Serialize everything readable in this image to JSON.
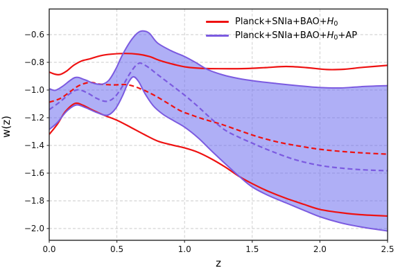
{
  "chart_data": {
    "type": "line",
    "title": "",
    "xlabel": "z",
    "ylabel": "w(z)",
    "xlim": [
      0,
      2.5
    ],
    "ylim": [
      -2.085,
      -0.415
    ],
    "grid": true,
    "grid_style": "dashed-light-gray",
    "legend_position": "upper-right",
    "xticks": {
      "values": [
        0.0,
        0.5,
        1.0,
        1.5,
        2.0,
        2.5
      ],
      "labels": [
        "0.0",
        "0.5",
        "1.0",
        "1.5",
        "2.0",
        "2.5"
      ]
    },
    "yticks": {
      "values": [
        -0.6,
        -0.8,
        -1.0,
        -1.2,
        -1.4,
        -1.6,
        -1.8,
        -2.0
      ],
      "labels": [
        "−0.6",
        "−0.8",
        "−1.0",
        "−1.2",
        "−1.4",
        "−1.6",
        "−1.8",
        "−2.0"
      ]
    },
    "series": [
      {
        "id": "h0-upper",
        "group": "Planck+SNIa+BAO+H0",
        "role": "upper 68% bound",
        "color": "#ee1111",
        "style": "solid",
        "width": 2.2,
        "points": [
          [
            0,
            -0.87
          ],
          [
            0.04,
            -0.885
          ],
          [
            0.08,
            -0.888
          ],
          [
            0.13,
            -0.862
          ],
          [
            0.18,
            -0.822
          ],
          [
            0.24,
            -0.79
          ],
          [
            0.3,
            -0.775
          ],
          [
            0.38,
            -0.752
          ],
          [
            0.46,
            -0.741
          ],
          [
            0.56,
            -0.736
          ],
          [
            0.66,
            -0.742
          ],
          [
            0.74,
            -0.758
          ],
          [
            0.82,
            -0.788
          ],
          [
            0.92,
            -0.815
          ],
          [
            1.02,
            -0.835
          ],
          [
            1.12,
            -0.843
          ],
          [
            1.25,
            -0.846
          ],
          [
            1.45,
            -0.845
          ],
          [
            1.6,
            -0.838
          ],
          [
            1.75,
            -0.83
          ],
          [
            1.9,
            -0.838
          ],
          [
            2.05,
            -0.852
          ],
          [
            2.18,
            -0.85
          ],
          [
            2.32,
            -0.836
          ],
          [
            2.5,
            -0.822
          ]
        ]
      },
      {
        "id": "h0-mean",
        "group": "Planck+SNIa+BAO+H0",
        "role": "mean",
        "color": "#ee1111",
        "style": "dashed",
        "width": 2.2,
        "points": [
          [
            0,
            -1.088
          ],
          [
            0.08,
            -1.062
          ],
          [
            0.15,
            -1.015
          ],
          [
            0.22,
            -0.968
          ],
          [
            0.3,
            -0.945
          ],
          [
            0.38,
            -0.958
          ],
          [
            0.48,
            -0.963
          ],
          [
            0.58,
            -0.962
          ],
          [
            0.68,
            -0.993
          ],
          [
            0.78,
            -1.04
          ],
          [
            0.88,
            -1.098
          ],
          [
            0.97,
            -1.15
          ],
          [
            1.05,
            -1.18
          ],
          [
            1.15,
            -1.213
          ],
          [
            1.28,
            -1.25
          ],
          [
            1.42,
            -1.298
          ],
          [
            1.55,
            -1.34
          ],
          [
            1.7,
            -1.378
          ],
          [
            1.85,
            -1.405
          ],
          [
            2.0,
            -1.428
          ],
          [
            2.18,
            -1.445
          ],
          [
            2.35,
            -1.456
          ],
          [
            2.5,
            -1.463
          ]
        ]
      },
      {
        "id": "h0-lower",
        "group": "Planck+SNIa+BAO+H0",
        "role": "lower 68% bound",
        "color": "#ee1111",
        "style": "solid",
        "width": 2.2,
        "points": [
          [
            0,
            -1.32
          ],
          [
            0.06,
            -1.247
          ],
          [
            0.12,
            -1.155
          ],
          [
            0.19,
            -1.097
          ],
          [
            0.25,
            -1.11
          ],
          [
            0.31,
            -1.14
          ],
          [
            0.4,
            -1.18
          ],
          [
            0.5,
            -1.218
          ],
          [
            0.6,
            -1.268
          ],
          [
            0.7,
            -1.32
          ],
          [
            0.8,
            -1.368
          ],
          [
            0.9,
            -1.395
          ],
          [
            1.0,
            -1.418
          ],
          [
            1.1,
            -1.45
          ],
          [
            1.2,
            -1.498
          ],
          [
            1.3,
            -1.556
          ],
          [
            1.4,
            -1.622
          ],
          [
            1.5,
            -1.676
          ],
          [
            1.62,
            -1.732
          ],
          [
            1.75,
            -1.782
          ],
          [
            1.88,
            -1.825
          ],
          [
            2.0,
            -1.862
          ],
          [
            2.15,
            -1.885
          ],
          [
            2.3,
            -1.9
          ],
          [
            2.5,
            -1.91
          ]
        ]
      },
      {
        "id": "ap-upper",
        "group": "Planck+SNIa+BAO+H0+AP",
        "role": "upper 68% bound",
        "color": "#7b5ae0",
        "style": "solid",
        "width": 2.0,
        "points": [
          [
            0,
            -0.99
          ],
          [
            0.045,
            -1.002
          ],
          [
            0.1,
            -0.972
          ],
          [
            0.19,
            -0.91
          ],
          [
            0.26,
            -0.925
          ],
          [
            0.33,
            -0.952
          ],
          [
            0.39,
            -0.958
          ],
          [
            0.44,
            -0.93
          ],
          [
            0.49,
            -0.852
          ],
          [
            0.54,
            -0.748
          ],
          [
            0.6,
            -0.648
          ],
          [
            0.65,
            -0.59
          ],
          [
            0.69,
            -0.573
          ],
          [
            0.74,
            -0.59
          ],
          [
            0.8,
            -0.66
          ],
          [
            0.9,
            -0.716
          ],
          [
            1.0,
            -0.758
          ],
          [
            1.08,
            -0.8
          ],
          [
            1.17,
            -0.852
          ],
          [
            1.28,
            -0.89
          ],
          [
            1.4,
            -0.917
          ],
          [
            1.52,
            -0.935
          ],
          [
            1.68,
            -0.953
          ],
          [
            1.85,
            -0.97
          ],
          [
            2.0,
            -0.982
          ],
          [
            2.15,
            -0.985
          ],
          [
            2.3,
            -0.976
          ],
          [
            2.5,
            -0.968
          ]
        ]
      },
      {
        "id": "ap-mean",
        "group": "Planck+SNIa+BAO+H0+AP",
        "role": "mean",
        "color": "#7b5ae0",
        "style": "dashed",
        "width": 2.2,
        "points": [
          [
            0,
            -1.142
          ],
          [
            0.08,
            -1.085
          ],
          [
            0.15,
            -1.028
          ],
          [
            0.21,
            -0.998
          ],
          [
            0.28,
            -1.02
          ],
          [
            0.35,
            -1.06
          ],
          [
            0.42,
            -1.082
          ],
          [
            0.48,
            -1.055
          ],
          [
            0.54,
            -0.975
          ],
          [
            0.6,
            -0.875
          ],
          [
            0.66,
            -0.808
          ],
          [
            0.72,
            -0.828
          ],
          [
            0.8,
            -0.888
          ],
          [
            0.9,
            -0.962
          ],
          [
            1.0,
            -1.037
          ],
          [
            1.1,
            -1.12
          ],
          [
            1.2,
            -1.21
          ],
          [
            1.3,
            -1.29
          ],
          [
            1.4,
            -1.34
          ],
          [
            1.52,
            -1.392
          ],
          [
            1.65,
            -1.445
          ],
          [
            1.8,
            -1.498
          ],
          [
            1.95,
            -1.535
          ],
          [
            2.1,
            -1.558
          ],
          [
            2.3,
            -1.575
          ],
          [
            2.5,
            -1.583
          ]
        ]
      },
      {
        "id": "ap-lower",
        "group": "Planck+SNIa+BAO+H0+AP",
        "role": "lower 68% bound",
        "color": "#7b5ae0",
        "style": "solid",
        "width": 2.0,
        "points": [
          [
            0,
            -1.285
          ],
          [
            0.06,
            -1.235
          ],
          [
            0.13,
            -1.152
          ],
          [
            0.2,
            -1.108
          ],
          [
            0.27,
            -1.128
          ],
          [
            0.35,
            -1.162
          ],
          [
            0.43,
            -1.182
          ],
          [
            0.49,
            -1.135
          ],
          [
            0.54,
            -1.045
          ],
          [
            0.58,
            -0.955
          ],
          [
            0.62,
            -0.905
          ],
          [
            0.66,
            -0.938
          ],
          [
            0.71,
            -1.03
          ],
          [
            0.77,
            -1.115
          ],
          [
            0.84,
            -1.175
          ],
          [
            0.92,
            -1.222
          ],
          [
            1.0,
            -1.268
          ],
          [
            1.1,
            -1.345
          ],
          [
            1.2,
            -1.44
          ],
          [
            1.3,
            -1.532
          ],
          [
            1.4,
            -1.62
          ],
          [
            1.5,
            -1.7
          ],
          [
            1.62,
            -1.762
          ],
          [
            1.75,
            -1.815
          ],
          [
            1.88,
            -1.868
          ],
          [
            2.0,
            -1.915
          ],
          [
            2.15,
            -1.958
          ],
          [
            2.3,
            -1.988
          ],
          [
            2.5,
            -2.018
          ]
        ]
      }
    ],
    "band": {
      "upper": "ap-upper",
      "lower": "ap-lower",
      "fill": "#6b6bee",
      "opacity": 0.54
    },
    "legend": {
      "entries": [
        {
          "color": "#ee1111",
          "label_plain": "Planck+SNIa+BAO+H0",
          "segments": [
            {
              "text": "Planck+SNIa+BAO+"
            },
            {
              "text": "H",
              "italic": true
            },
            {
              "text": "0",
              "sub": true
            }
          ]
        },
        {
          "color": "#7b5ae0",
          "label_plain": "Planck+SNIa+BAO+H0+AP",
          "segments": [
            {
              "text": "Planck+SNIa+BAO+"
            },
            {
              "text": "H",
              "italic": true
            },
            {
              "text": "0",
              "sub": true
            },
            {
              "text": "+AP"
            }
          ]
        }
      ]
    }
  }
}
